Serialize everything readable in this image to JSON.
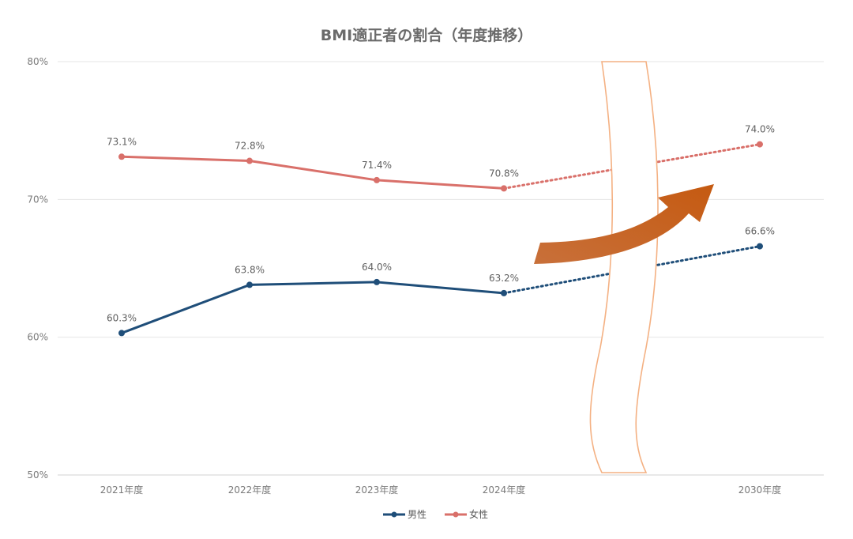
{
  "chart_data": {
    "type": "line",
    "title": "BMI適正者の割合（年度推移）",
    "categories": [
      "2021年度",
      "2022年度",
      "2023年度",
      "2024年度",
      "",
      "2030年度"
    ],
    "ylim": [
      50,
      80
    ],
    "yticks": [
      "50%",
      "60%",
      "70%",
      "80%"
    ],
    "ytick_values": [
      50,
      60,
      70,
      80
    ],
    "grid": true,
    "legend_position": "bottom",
    "series": [
      {
        "name": "男性",
        "color": "#1f4e79",
        "values": [
          60.3,
          63.8,
          64.0,
          63.2,
          null,
          66.6
        ],
        "labels": [
          "60.3%",
          "63.8%",
          "64.0%",
          "63.2%",
          "",
          "66.6%"
        ]
      },
      {
        "name": "女性",
        "color": "#d9706a",
        "values": [
          73.1,
          72.8,
          71.4,
          70.8,
          null,
          74.0
        ],
        "labels": [
          "73.1%",
          "72.8%",
          "71.4%",
          "70.8%",
          "",
          "74.0%"
        ]
      }
    ],
    "projection_from_index": 3,
    "annotations": {
      "break_marker": "axis-break",
      "trend_arrow": "upward-trend",
      "arrow_color": "#c55a11",
      "break_color": "#f4b183"
    }
  }
}
